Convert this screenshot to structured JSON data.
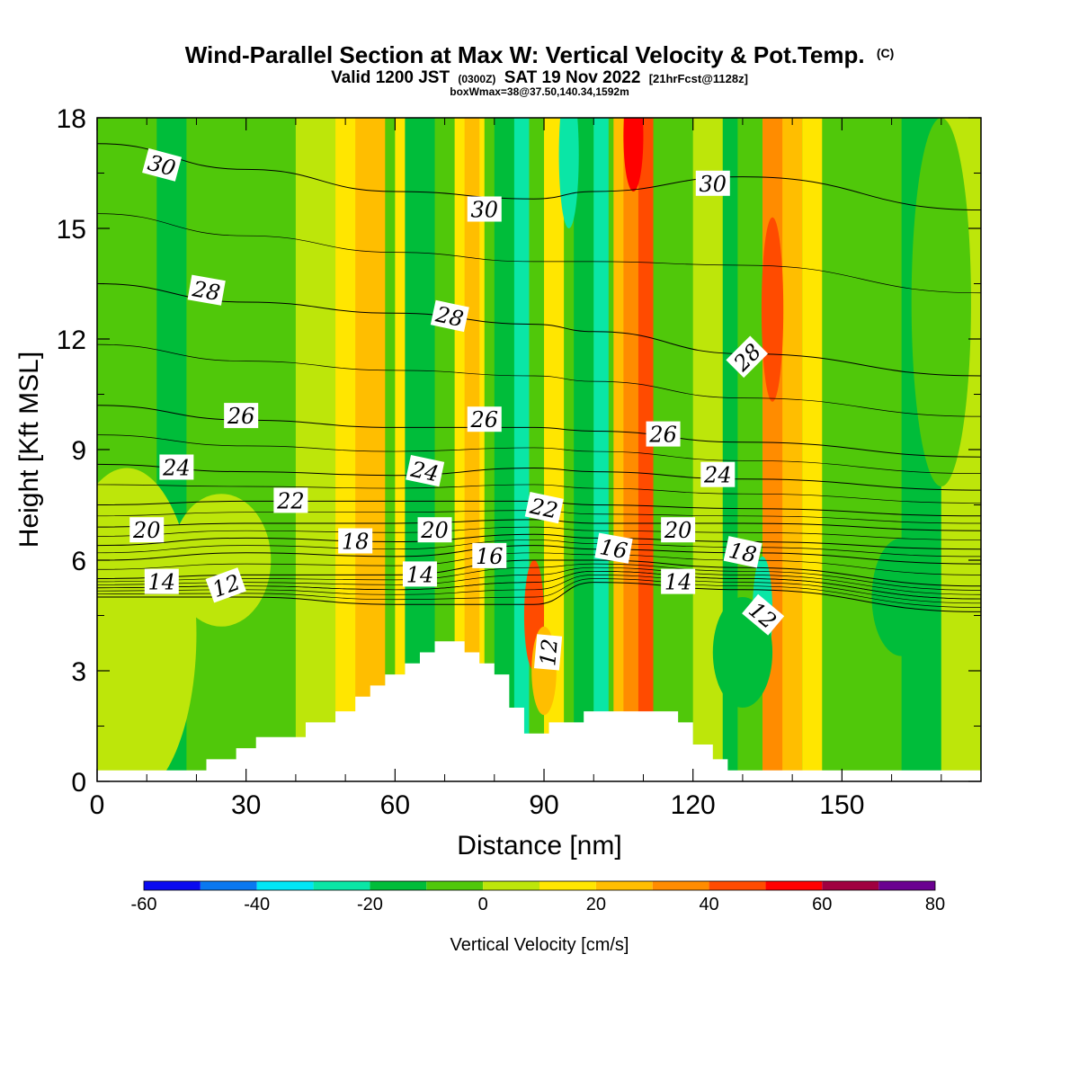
{
  "chart_data": {
    "type": "heatmap",
    "title": "Wind-Parallel Section at Max W: Vertical Velocity & Pot.Temp.",
    "title_mark": "(C)",
    "subtitle_parts": [
      "Valid 1200 JST",
      "(0300Z)",
      "SAT 19 Nov 2022",
      "[21hrFcst@1128z]"
    ],
    "subtitle2": "boxWmax=38@37.50,140.34,1592m",
    "xlabel": "Distance [nm]",
    "ylabel": "Height [Kft MSL]",
    "xlim": [
      0,
      178
    ],
    "ylim": [
      0,
      18
    ],
    "x_ticks": [
      0,
      30,
      60,
      90,
      120,
      150
    ],
    "y_ticks": [
      0,
      3,
      6,
      9,
      12,
      15,
      18
    ],
    "colorbar": {
      "label": "Vertical Velocity [cm/s]",
      "range": [
        -60,
        80
      ],
      "tick_values": [
        -60,
        -40,
        -20,
        0,
        20,
        40,
        60,
        80
      ],
      "tick_labels": [
        "-60",
        "-40",
        "-20",
        "0",
        "20",
        "40",
        "60",
        "80"
      ],
      "colors": [
        "#0a0af0",
        "#0a78f0",
        "#00e6f5",
        "#0ae6a6",
        "#00bd3a",
        "#50c80a",
        "#bde60a",
        "#ffe600",
        "#ffbe00",
        "#ff8c00",
        "#ff4b00",
        "#ff0000",
        "#a00040",
        "#6a0090"
      ]
    },
    "field_bands": [
      {
        "x": 0,
        "width": 4,
        "w": -2
      },
      {
        "x": 12,
        "width": 6,
        "w": -12
      },
      {
        "x": 40,
        "width": 12,
        "w": 5
      },
      {
        "x": 48,
        "width": 6,
        "w": 12
      },
      {
        "x": 52,
        "width": 6,
        "w": 25
      },
      {
        "x": 60,
        "width": 6,
        "w": 12
      },
      {
        "x": 62,
        "width": 6,
        "w": -12
      },
      {
        "x": 72,
        "width": 6,
        "w": 12
      },
      {
        "x": 74,
        "width": 3,
        "w": 20
      },
      {
        "x": 80,
        "width": 6,
        "w": -14
      },
      {
        "x": 84,
        "width": 3,
        "w": -24
      },
      {
        "x": 90,
        "width": 4,
        "w": 12
      },
      {
        "x": 96,
        "width": 4,
        "w": -12
      },
      {
        "x": 100,
        "width": 3,
        "w": -25
      },
      {
        "x": 104,
        "width": 8,
        "w": 22
      },
      {
        "x": 106,
        "width": 4,
        "w": 35
      },
      {
        "x": 109,
        "width": 3,
        "w": 45
      },
      {
        "x": 120,
        "width": 6,
        "w": 5
      },
      {
        "x": 126,
        "width": 3,
        "w": -14
      },
      {
        "x": 134,
        "width": 8,
        "w": 22
      },
      {
        "x": 134,
        "width": 4,
        "w": 38
      },
      {
        "x": 142,
        "width": 4,
        "w": 12
      },
      {
        "x": 162,
        "width": 8,
        "w": -12
      },
      {
        "x": 170,
        "width": 8,
        "w": 5
      }
    ],
    "field_blobs": [
      {
        "x": 88,
        "y": 4.5,
        "rx": 2.0,
        "ry": 1.5,
        "w": 40
      },
      {
        "x": 90,
        "y": 3.0,
        "rx": 2.5,
        "ry": 1.2,
        "w": 25
      },
      {
        "x": 136,
        "y": 12.8,
        "rx": 2.2,
        "ry": 2.5,
        "w": 40
      },
      {
        "x": 134,
        "y": 4.6,
        "rx": 2.0,
        "ry": 1.5,
        "w": -25
      },
      {
        "x": 25,
        "y": 6.0,
        "rx": 10,
        "ry": 1.8,
        "w": 8
      },
      {
        "x": 130,
        "y": 3.5,
        "rx": 6,
        "ry": 1.5,
        "w": -15
      },
      {
        "x": 162,
        "y": 5.0,
        "rx": 6,
        "ry": 1.6,
        "w": -12
      },
      {
        "x": 6,
        "y": 4.0,
        "rx": 14,
        "ry": 4.5,
        "w": 6
      },
      {
        "x": 170,
        "y": 13.0,
        "rx": 6,
        "ry": 5,
        "w": -10
      },
      {
        "x": 95,
        "y": 17.0,
        "rx": 2,
        "ry": 2,
        "w": -25
      },
      {
        "x": 108,
        "y": 17.5,
        "rx": 2,
        "ry": 1.5,
        "w": 55
      }
    ],
    "terrain": [
      [
        0,
        0.3
      ],
      [
        22,
        0.3
      ],
      [
        22,
        0.6
      ],
      [
        28,
        0.6
      ],
      [
        28,
        0.9
      ],
      [
        32,
        0.9
      ],
      [
        32,
        1.2
      ],
      [
        42,
        1.2
      ],
      [
        42,
        1.6
      ],
      [
        48,
        1.6
      ],
      [
        48,
        1.9
      ],
      [
        52,
        1.9
      ],
      [
        52,
        2.3
      ],
      [
        55,
        2.3
      ],
      [
        55,
        2.6
      ],
      [
        58,
        2.6
      ],
      [
        58,
        2.9
      ],
      [
        62,
        2.9
      ],
      [
        62,
        3.2
      ],
      [
        65,
        3.2
      ],
      [
        65,
        3.5
      ],
      [
        68,
        3.5
      ],
      [
        68,
        3.8
      ],
      [
        74,
        3.8
      ],
      [
        74,
        3.5
      ],
      [
        77,
        3.5
      ],
      [
        77,
        3.2
      ],
      [
        80,
        3.2
      ],
      [
        80,
        2.9
      ],
      [
        83,
        2.9
      ],
      [
        83,
        2.0
      ],
      [
        86,
        2.0
      ],
      [
        86,
        1.3
      ],
      [
        91,
        1.3
      ],
      [
        91,
        1.6
      ],
      [
        98,
        1.6
      ],
      [
        98,
        1.9
      ],
      [
        117,
        1.9
      ],
      [
        117,
        1.6
      ],
      [
        120,
        1.6
      ],
      [
        120,
        1.0
      ],
      [
        124,
        1.0
      ],
      [
        124,
        0.6
      ],
      [
        127,
        0.6
      ],
      [
        127,
        0.3
      ],
      [
        178,
        0.3
      ]
    ],
    "theta_contours": [
      {
        "theta": 12,
        "label": "12",
        "profile": [
          [
            0,
            5.0
          ],
          [
            30,
            5.0
          ],
          [
            60,
            4.8
          ],
          [
            88,
            4.8
          ],
          [
            100,
            5.4
          ],
          [
            130,
            5.2
          ],
          [
            178,
            4.6
          ]
        ]
      },
      {
        "theta": 14,
        "label": "14",
        "profile": [
          [
            0,
            5.5
          ],
          [
            30,
            5.6
          ],
          [
            60,
            5.6
          ],
          [
            88,
            6.0
          ],
          [
            100,
            6.0
          ],
          [
            130,
            5.8
          ],
          [
            178,
            5.3
          ]
        ]
      },
      {
        "theta": 16,
        "label": "16",
        "profile": [
          [
            0,
            6.0
          ],
          [
            30,
            6.2
          ],
          [
            60,
            6.1
          ],
          [
            88,
            6.4
          ],
          [
            100,
            6.3
          ],
          [
            130,
            6.2
          ],
          [
            178,
            5.9
          ]
        ]
      },
      {
        "theta": 18,
        "label": "18",
        "profile": [
          [
            0,
            6.4
          ],
          [
            30,
            6.6
          ],
          [
            60,
            6.5
          ],
          [
            88,
            6.7
          ],
          [
            100,
            6.6
          ],
          [
            130,
            6.5
          ],
          [
            178,
            6.3
          ]
        ]
      },
      {
        "theta": 20,
        "label": "20",
        "profile": [
          [
            0,
            6.9
          ],
          [
            30,
            7.0
          ],
          [
            60,
            7.0
          ],
          [
            88,
            7.1
          ],
          [
            100,
            7.0
          ],
          [
            130,
            7.0
          ],
          [
            178,
            6.8
          ]
        ]
      },
      {
        "theta": 22,
        "label": "22",
        "profile": [
          [
            0,
            7.5
          ],
          [
            30,
            7.6
          ],
          [
            60,
            7.6
          ],
          [
            88,
            7.6
          ],
          [
            100,
            7.5
          ],
          [
            130,
            7.4
          ],
          [
            178,
            7.2
          ]
        ]
      },
      {
        "theta": 24,
        "label": "24",
        "profile": [
          [
            0,
            8.6
          ],
          [
            30,
            8.4
          ],
          [
            60,
            8.3
          ],
          [
            88,
            8.5
          ],
          [
            100,
            8.4
          ],
          [
            130,
            8.2
          ],
          [
            178,
            7.9
          ]
        ]
      },
      {
        "theta": 26,
        "label": "26",
        "profile": [
          [
            0,
            10.2
          ],
          [
            30,
            9.8
          ],
          [
            60,
            9.6
          ],
          [
            88,
            9.6
          ],
          [
            100,
            9.5
          ],
          [
            130,
            9.2
          ],
          [
            178,
            8.8
          ]
        ]
      },
      {
        "theta": 28,
        "label": "28",
        "profile": [
          [
            0,
            13.5
          ],
          [
            30,
            13.0
          ],
          [
            60,
            12.7
          ],
          [
            88,
            12.4
          ],
          [
            100,
            12.2
          ],
          [
            130,
            11.6
          ],
          [
            178,
            11.0
          ]
        ]
      },
      {
        "theta": 30,
        "label": "30",
        "profile": [
          [
            0,
            17.3
          ],
          [
            30,
            16.6
          ],
          [
            60,
            16.0
          ],
          [
            88,
            15.8
          ],
          [
            100,
            16.0
          ],
          [
            130,
            16.4
          ],
          [
            178,
            15.5
          ]
        ]
      }
    ],
    "contour_labels": [
      {
        "text": "30",
        "x": 13,
        "y": 16.7,
        "rot": 15
      },
      {
        "text": "30",
        "x": 78,
        "y": 15.5,
        "rot": 0
      },
      {
        "text": "30",
        "x": 124,
        "y": 16.2,
        "rot": 0
      },
      {
        "text": "28",
        "x": 22,
        "y": 13.3,
        "rot": 10
      },
      {
        "text": "28",
        "x": 71,
        "y": 12.6,
        "rot": 12
      },
      {
        "text": "28",
        "x": 131,
        "y": 11.5,
        "rot": -45
      },
      {
        "text": "26",
        "x": 29,
        "y": 9.9,
        "rot": 0
      },
      {
        "text": "26",
        "x": 78,
        "y": 9.8,
        "rot": 0
      },
      {
        "text": "26",
        "x": 114,
        "y": 9.4,
        "rot": 0
      },
      {
        "text": "24",
        "x": 16,
        "y": 8.5,
        "rot": 0
      },
      {
        "text": "24",
        "x": 66,
        "y": 8.4,
        "rot": 12
      },
      {
        "text": "24",
        "x": 125,
        "y": 8.3,
        "rot": 0
      },
      {
        "text": "22",
        "x": 39,
        "y": 7.6,
        "rot": 0
      },
      {
        "text": "22",
        "x": 90,
        "y": 7.4,
        "rot": 12
      },
      {
        "text": "20",
        "x": 10,
        "y": 6.8,
        "rot": 0
      },
      {
        "text": "20",
        "x": 68,
        "y": 6.8,
        "rot": 0
      },
      {
        "text": "20",
        "x": 117,
        "y": 6.8,
        "rot": 0
      },
      {
        "text": "18",
        "x": 52,
        "y": 6.5,
        "rot": 0
      },
      {
        "text": "18",
        "x": 130,
        "y": 6.2,
        "rot": 12
      },
      {
        "text": "16",
        "x": 79,
        "y": 6.1,
        "rot": 0
      },
      {
        "text": "16",
        "x": 104,
        "y": 6.3,
        "rot": 10
      },
      {
        "text": "14",
        "x": 13,
        "y": 5.4,
        "rot": 0
      },
      {
        "text": "14",
        "x": 65,
        "y": 5.6,
        "rot": 0
      },
      {
        "text": "14",
        "x": 117,
        "y": 5.4,
        "rot": 0
      },
      {
        "text": "12",
        "x": 26,
        "y": 5.3,
        "rot": -20
      },
      {
        "text": "12",
        "x": 91,
        "y": 3.5,
        "rot": -85
      },
      {
        "text": "12",
        "x": 134,
        "y": 4.5,
        "rot": 40
      }
    ]
  }
}
